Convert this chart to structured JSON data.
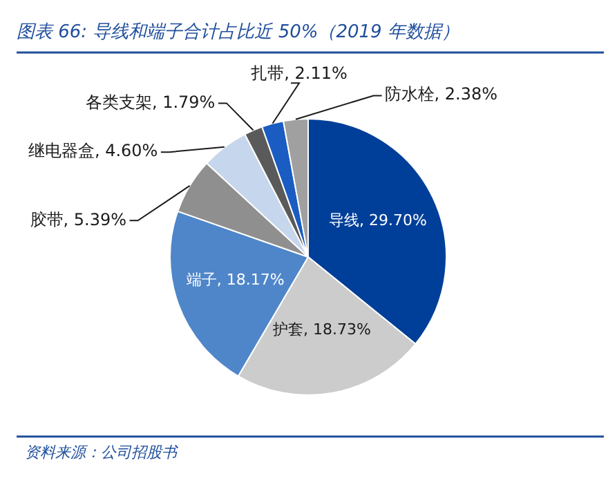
{
  "chart_data": {
    "type": "pie",
    "title": "图表 66: 导线和端子合计占比近 50%（2019 年数据）",
    "categories": [
      "导线",
      "护套",
      "端子",
      "胶带",
      "继电器盒",
      "各类支架",
      "扎带",
      "防水栓"
    ],
    "value_labels": [
      "29.70%",
      "18.73%",
      "18.17%",
      "5.39%",
      "4.60%",
      "1.79%",
      "2.11%",
      "2.38%"
    ],
    "values": [
      29.7,
      18.73,
      18.17,
      5.39,
      4.6,
      1.79,
      2.11,
      2.38
    ],
    "colors": [
      "#003f99",
      "#cccccc",
      "#4f86c9",
      "#8f8f8f",
      "#c6d6ec",
      "#5a5a5a",
      "#1a5cc2",
      "#a0a0a0"
    ],
    "annotations": [
      "资料来源：公司招股书"
    ]
  }
}
